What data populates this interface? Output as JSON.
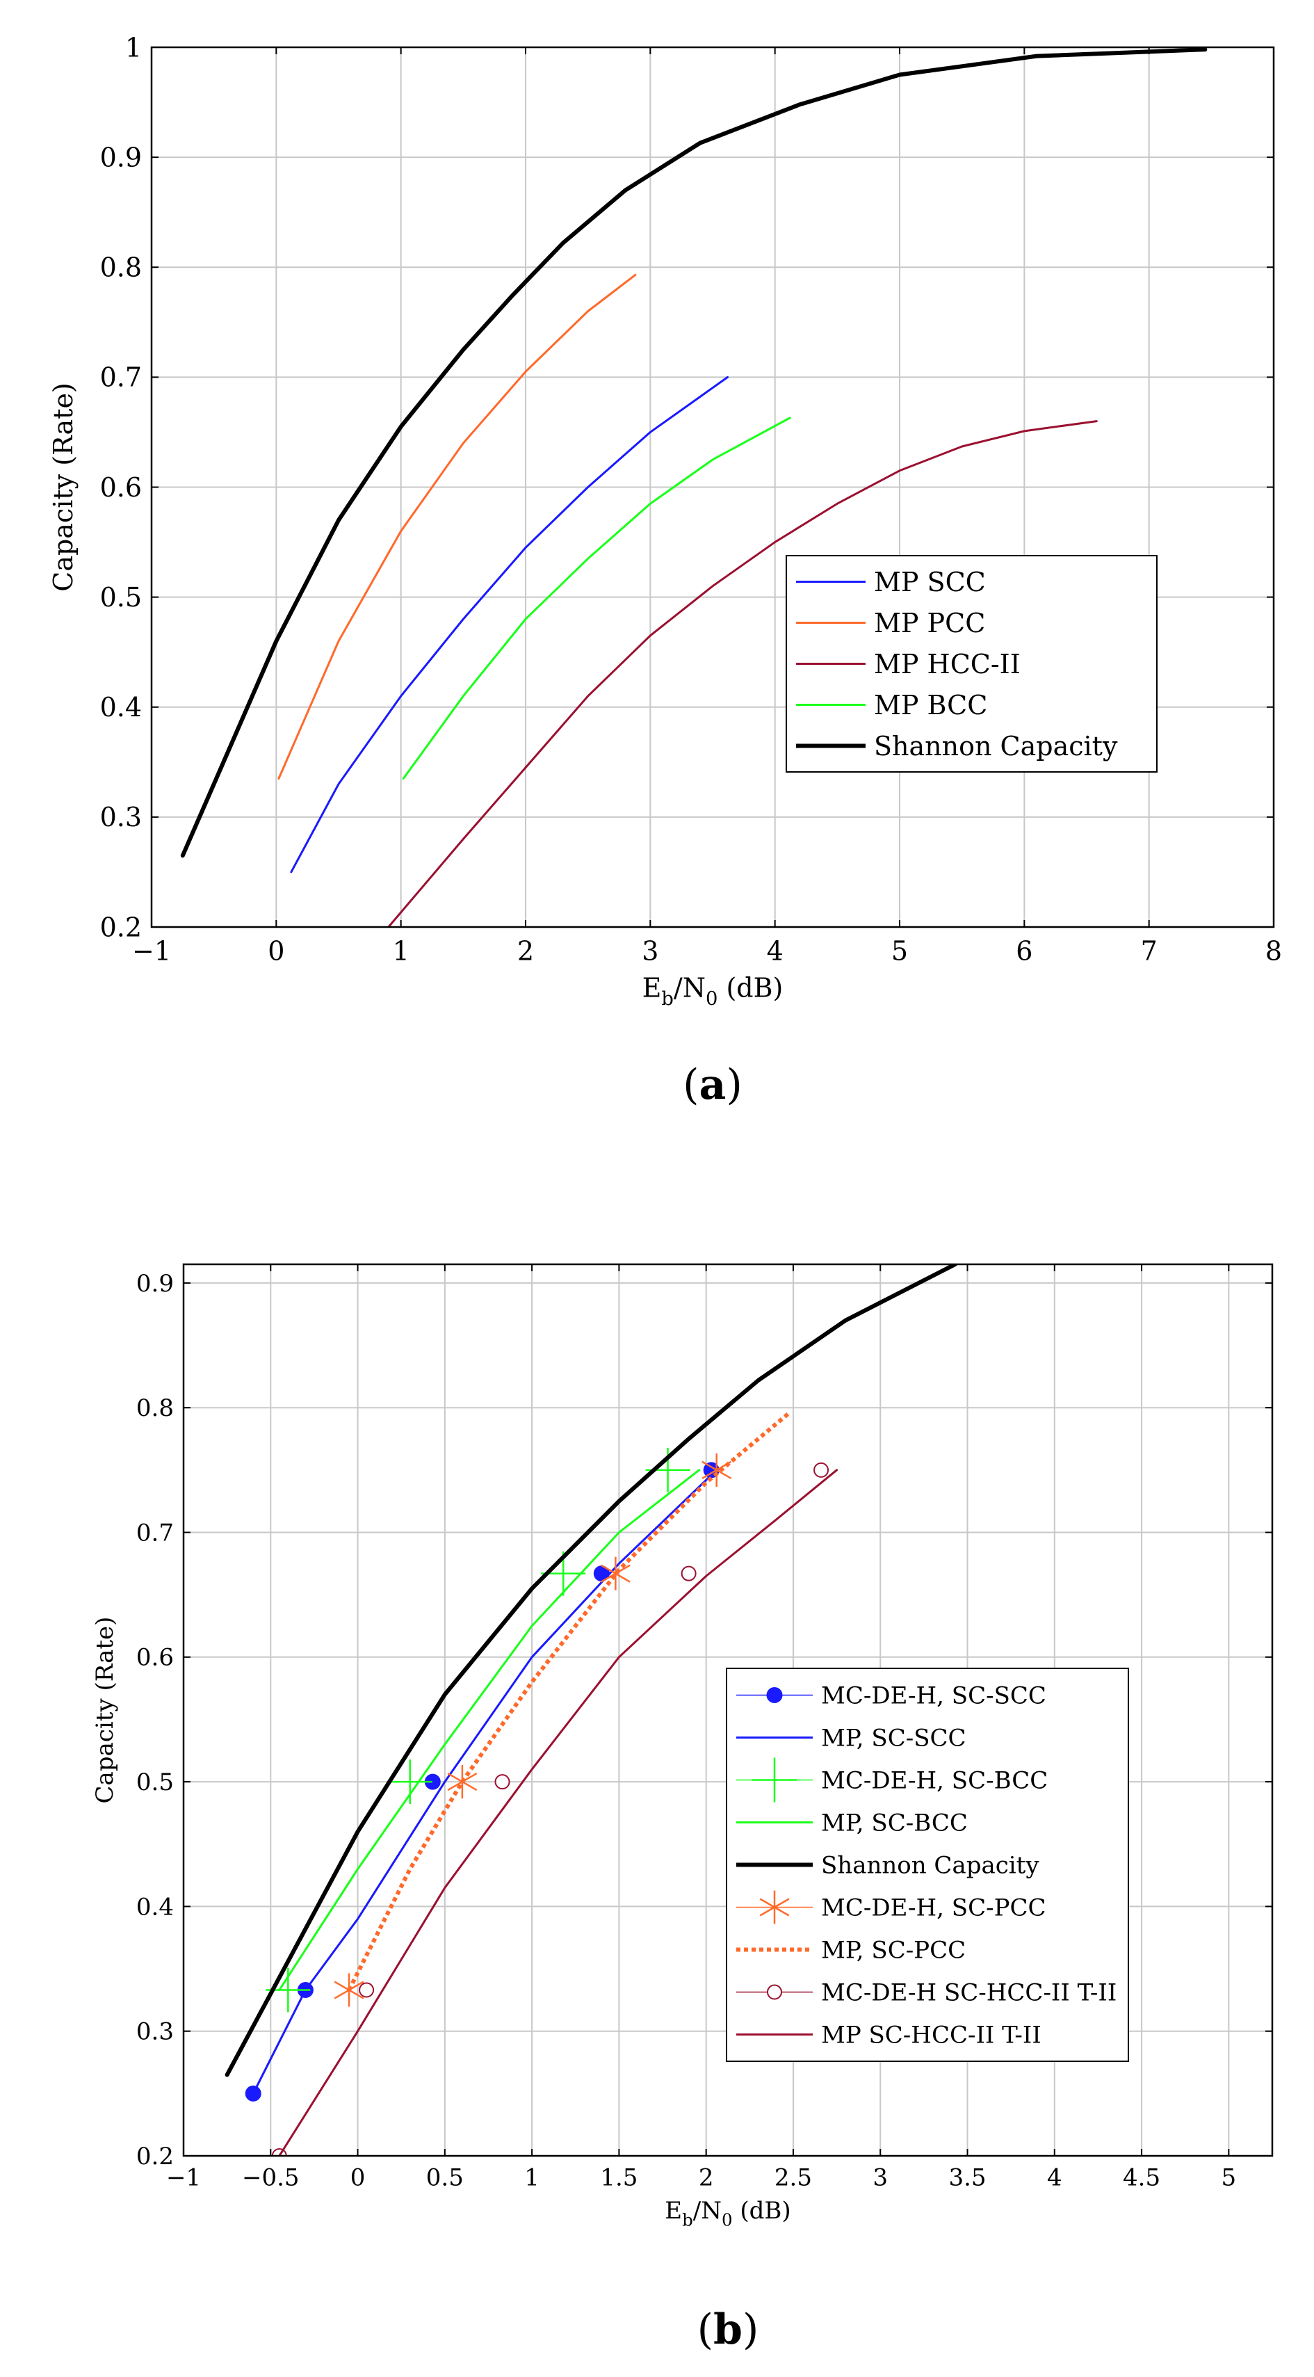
{
  "chart_data": [
    {
      "type": "line",
      "panel_label": "(a)",
      "xlabel": "E_b/N_0 (dB)",
      "ylabel": "Capacity (Rate)",
      "xlim": [
        -1,
        8
      ],
      "ylim": [
        0.2,
        1
      ],
      "xticks": [
        -1,
        0,
        1,
        2,
        3,
        4,
        5,
        6,
        7,
        8
      ],
      "yticks": [
        0.2,
        0.3,
        0.4,
        0.5,
        0.6,
        0.7,
        0.8,
        0.9,
        1
      ],
      "xtick_labels": [
        "−1",
        "0",
        "1",
        "2",
        "3",
        "4",
        "5",
        "6",
        "7",
        "8"
      ],
      "ytick_labels": [
        "0.2",
        "0.3",
        "0.4",
        "0.5",
        "0.6",
        "0.7",
        "0.8",
        "0.9",
        "1"
      ],
      "grid": true,
      "legend_position": "right-lower",
      "series": [
        {
          "name": "MP SCC",
          "color": "#1a1aff",
          "style": "solid",
          "width": 3,
          "marker": "none",
          "x": [
            0.12,
            0.5,
            1.0,
            1.5,
            2.0,
            2.5,
            3.0,
            3.62
          ],
          "y": [
            0.25,
            0.33,
            0.41,
            0.48,
            0.545,
            0.6,
            0.65,
            0.7
          ]
        },
        {
          "name": "MP PCC",
          "color": "#ff6a2b",
          "style": "solid",
          "width": 3,
          "marker": "none",
          "x": [
            0.02,
            0.5,
            1.0,
            1.5,
            2.0,
            2.5,
            2.88
          ],
          "y": [
            0.335,
            0.46,
            0.56,
            0.64,
            0.705,
            0.76,
            0.793
          ]
        },
        {
          "name": "MP HCC-II",
          "color": "#9b1030",
          "style": "solid",
          "width": 3,
          "marker": "none",
          "x": [
            0.9,
            1.5,
            2.0,
            2.5,
            3.0,
            3.5,
            4.0,
            4.5,
            5.0,
            5.5,
            6.0,
            6.58
          ],
          "y": [
            0.2,
            0.28,
            0.345,
            0.41,
            0.465,
            0.51,
            0.55,
            0.585,
            0.615,
            0.637,
            0.651,
            0.66
          ]
        },
        {
          "name": "MP BCC",
          "color": "#1aff1a",
          "style": "solid",
          "width": 3,
          "marker": "none",
          "x": [
            1.02,
            1.5,
            2.0,
            2.5,
            3.0,
            3.5,
            4.12
          ],
          "y": [
            0.335,
            0.41,
            0.48,
            0.535,
            0.585,
            0.625,
            0.663
          ]
        },
        {
          "name": "Shannon Capacity",
          "color": "#000000",
          "style": "solid",
          "width": 6,
          "marker": "none",
          "x": [
            -0.75,
            -0.5,
            0.0,
            0.5,
            1.0,
            1.5,
            1.9,
            2.3,
            2.8,
            3.4,
            4.2,
            5.0,
            6.1,
            7.45
          ],
          "y": [
            0.265,
            0.33,
            0.46,
            0.57,
            0.655,
            0.725,
            0.775,
            0.822,
            0.87,
            0.913,
            0.948,
            0.975,
            0.992,
            0.998
          ]
        }
      ]
    },
    {
      "type": "line",
      "panel_label": "(b)",
      "xlabel": "E_b/N_0 (dB)",
      "ylabel": "Capacity (Rate)",
      "xlim": [
        -1,
        5.25
      ],
      "ylim": [
        0.2,
        0.915
      ],
      "xticks": [
        -1,
        -0.5,
        0,
        0.5,
        1,
        1.5,
        2,
        2.5,
        3,
        3.5,
        4,
        4.5,
        5
      ],
      "yticks": [
        0.2,
        0.3,
        0.4,
        0.5,
        0.6,
        0.7,
        0.8,
        0.9
      ],
      "xtick_labels": [
        "−1",
        "−0.5",
        "0",
        "0.5",
        "1",
        "1.5",
        "2",
        "2.5",
        "3",
        "3.5",
        "4",
        "4.5",
        "5"
      ],
      "ytick_labels": [
        "0.2",
        "0.3",
        "0.4",
        "0.5",
        "0.6",
        "0.7",
        "0.8",
        "0.9"
      ],
      "grid": true,
      "legend_position": "right-lower",
      "series": [
        {
          "name": "MC-DE-H, SC-SCC",
          "color": "#1a1aff",
          "style": "none",
          "width": 1.5,
          "marker": "dot",
          "x": [
            -0.6,
            -0.3,
            0.43,
            1.4,
            2.03
          ],
          "y": [
            0.25,
            0.333,
            0.5,
            0.667,
            0.75
          ]
        },
        {
          "name": "MP, SC-SCC",
          "color": "#1a1aff",
          "style": "solid",
          "width": 3,
          "marker": "none",
          "x": [
            -0.6,
            -0.3,
            0.0,
            0.5,
            1.0,
            1.5,
            2.06
          ],
          "y": [
            0.25,
            0.333,
            0.39,
            0.5,
            0.6,
            0.675,
            0.75
          ]
        },
        {
          "name": "MC-DE-H, SC-BCC",
          "color": "#1aff1a",
          "style": "none",
          "width": 1.5,
          "marker": "plus",
          "x": [
            -0.4,
            0.3,
            1.18,
            1.78
          ],
          "y": [
            0.333,
            0.5,
            0.667,
            0.75
          ]
        },
        {
          "name": "MP, SC-BCC",
          "color": "#1aff1a",
          "style": "solid",
          "width": 3,
          "marker": "none",
          "x": [
            -0.45,
            0.0,
            0.5,
            1.0,
            1.5,
            1.96
          ],
          "y": [
            0.333,
            0.43,
            0.53,
            0.625,
            0.7,
            0.75
          ]
        },
        {
          "name": "Shannon Capacity",
          "color": "#000000",
          "style": "solid",
          "width": 6,
          "marker": "none",
          "x": [
            -0.75,
            -0.5,
            0.0,
            0.5,
            1.0,
            1.5,
            1.9,
            2.3,
            2.8,
            3.43
          ],
          "y": [
            0.265,
            0.33,
            0.46,
            0.57,
            0.655,
            0.725,
            0.775,
            0.822,
            0.87,
            0.915
          ]
        },
        {
          "name": "MC-DE-H, SC-PCC",
          "color": "#ff6a2b",
          "style": "none",
          "width": 1.5,
          "marker": "asterisk",
          "x": [
            -0.05,
            0.6,
            1.48,
            2.06
          ],
          "y": [
            0.333,
            0.5,
            0.667,
            0.75
          ]
        },
        {
          "name": "MP, SC-PCC",
          "color": "#ff6a2b",
          "style": "dotted",
          "width": 6,
          "marker": "none",
          "x": [
            -0.05,
            0.3,
            0.6,
            1.0,
            1.5,
            2.0,
            2.47
          ],
          "y": [
            0.333,
            0.43,
            0.5,
            0.58,
            0.67,
            0.74,
            0.795
          ]
        },
        {
          "name": "MC-DE-H SC-HCC-II T-II",
          "color": "#9b1030",
          "style": "none",
          "width": 1.5,
          "marker": "circle",
          "x": [
            -0.45,
            0.05,
            0.83,
            1.9,
            2.66
          ],
          "y": [
            0.2,
            0.333,
            0.5,
            0.667,
            0.75
          ]
        },
        {
          "name": "MP SC-HCC-II T-II",
          "color": "#9b1030",
          "style": "solid",
          "width": 3,
          "marker": "none",
          "x": [
            -0.45,
            0.0,
            0.5,
            1.0,
            1.5,
            2.0,
            2.4,
            2.75
          ],
          "y": [
            0.2,
            0.3,
            0.415,
            0.51,
            0.6,
            0.665,
            0.71,
            0.75
          ]
        }
      ]
    }
  ]
}
